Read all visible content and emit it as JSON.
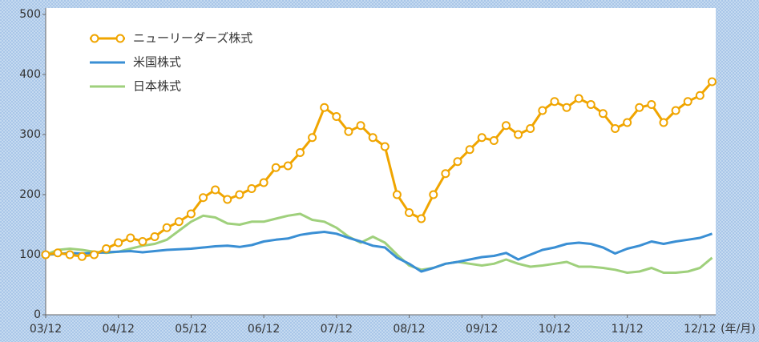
{
  "chart_data": {
    "type": "line",
    "x": [
      0,
      2,
      4,
      6,
      8,
      10,
      12,
      14,
      16,
      18,
      20,
      22,
      24,
      26,
      28,
      30,
      32,
      34,
      36,
      38,
      40,
      42,
      44,
      46,
      48,
      50,
      52,
      54,
      56,
      58,
      60,
      62,
      64,
      66,
      68,
      70,
      72,
      74,
      76,
      78,
      80,
      82,
      84,
      86,
      88,
      90,
      92,
      94,
      96,
      98,
      100,
      102,
      104,
      106,
      108,
      110
    ],
    "xlim": [
      0,
      110.6
    ],
    "xticks": [
      {
        "value": 0,
        "label": "03/12"
      },
      {
        "value": 12,
        "label": "04/12"
      },
      {
        "value": 24,
        "label": "05/12"
      },
      {
        "value": 36,
        "label": "06/12"
      },
      {
        "value": 48,
        "label": "07/12"
      },
      {
        "value": 60,
        "label": "08/12"
      },
      {
        "value": 72,
        "label": "09/12"
      },
      {
        "value": 84,
        "label": "10/12"
      },
      {
        "value": 96,
        "label": "11/12"
      },
      {
        "value": 108,
        "label": "12/12"
      }
    ],
    "x_unit": "(年/月)",
    "ylim": [
      0,
      500
    ],
    "yticks": [
      0,
      100,
      200,
      300,
      400,
      500
    ],
    "legend": "upper left",
    "series": [
      {
        "name": "ニューリーダーズ株式",
        "color": "#f0a500",
        "marker": true,
        "values": [
          100,
          103,
          100,
          97,
          100,
          110,
          120,
          128,
          122,
          130,
          145,
          155,
          168,
          195,
          208,
          192,
          200,
          210,
          220,
          245,
          248,
          270,
          295,
          345,
          330,
          305,
          315,
          295,
          280,
          200,
          170,
          160,
          200,
          235,
          255,
          275,
          295,
          290,
          315,
          300,
          310,
          340,
          355,
          345,
          360,
          350,
          335,
          310,
          320,
          345,
          350,
          320,
          340,
          355,
          365,
          388
        ]
      },
      {
        "name": "米国株式",
        "color": "#3a8fd4",
        "marker": false,
        "values": [
          100,
          101,
          103,
          102,
          103,
          104,
          105,
          106,
          104,
          106,
          108,
          109,
          110,
          112,
          114,
          115,
          113,
          116,
          122,
          125,
          127,
          133,
          136,
          138,
          135,
          128,
          122,
          115,
          112,
          95,
          85,
          72,
          78,
          85,
          88,
          92,
          96,
          98,
          103,
          92,
          100,
          108,
          112,
          118,
          120,
          118,
          112,
          102,
          110,
          115,
          122,
          118,
          122,
          125,
          128,
          135
        ]
      },
      {
        "name": "日本株式",
        "color": "#9fd07c",
        "marker": false,
        "values": [
          100,
          108,
          110,
          108,
          105,
          103,
          105,
          110,
          115,
          118,
          125,
          140,
          155,
          165,
          162,
          152,
          150,
          155,
          155,
          160,
          165,
          168,
          158,
          155,
          145,
          130,
          120,
          130,
          120,
          100,
          82,
          75,
          78,
          85,
          88,
          85,
          82,
          85,
          92,
          85,
          80,
          82,
          85,
          88,
          80,
          80,
          78,
          75,
          70,
          72,
          78,
          70,
          70,
          72,
          78,
          95
        ]
      }
    ]
  }
}
